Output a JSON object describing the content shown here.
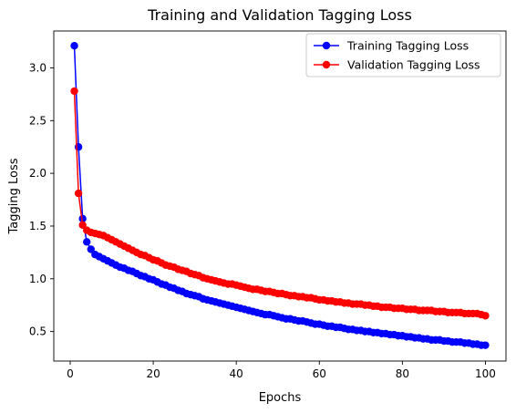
{
  "chart_data": {
    "type": "line",
    "title": "Training and Validation Tagging Loss",
    "xlabel": "Epochs",
    "ylabel": "Tagging Loss",
    "xlim": [
      -3.95,
      104.95
    ],
    "ylim": [
      0.22,
      3.35
    ],
    "xticks": [
      0,
      20,
      40,
      60,
      80,
      100
    ],
    "yticks": [
      0.5,
      1.0,
      1.5,
      2.0,
      2.5,
      3.0
    ],
    "ytick_labels": [
      "0.5",
      "1.0",
      "1.5",
      "2.0",
      "2.5",
      "3.0"
    ],
    "grid": false,
    "legend_position": "upper right",
    "x": [
      1,
      2,
      3,
      4,
      5,
      6,
      7,
      8,
      9,
      10,
      11,
      12,
      13,
      14,
      15,
      16,
      17,
      18,
      19,
      20,
      21,
      22,
      23,
      24,
      25,
      26,
      27,
      28,
      29,
      30,
      31,
      32,
      33,
      34,
      35,
      36,
      37,
      38,
      39,
      40,
      41,
      42,
      43,
      44,
      45,
      46,
      47,
      48,
      49,
      50,
      51,
      52,
      53,
      54,
      55,
      56,
      57,
      58,
      59,
      60,
      61,
      62,
      63,
      64,
      65,
      66,
      67,
      68,
      69,
      70,
      71,
      72,
      73,
      74,
      75,
      76,
      77,
      78,
      79,
      80,
      81,
      82,
      83,
      84,
      85,
      86,
      87,
      88,
      89,
      90,
      91,
      92,
      93,
      94,
      95,
      96,
      97,
      98,
      99,
      100
    ],
    "series": [
      {
        "name": "Training Tagging Loss",
        "color": "#0000ff",
        "values": [
          3.21,
          2.25,
          1.57,
          1.35,
          1.28,
          1.23,
          1.21,
          1.19,
          1.17,
          1.15,
          1.13,
          1.11,
          1.1,
          1.08,
          1.07,
          1.05,
          1.03,
          1.02,
          1.0,
          0.99,
          0.97,
          0.95,
          0.94,
          0.92,
          0.91,
          0.89,
          0.88,
          0.86,
          0.85,
          0.84,
          0.83,
          0.81,
          0.8,
          0.79,
          0.78,
          0.77,
          0.76,
          0.75,
          0.74,
          0.73,
          0.72,
          0.71,
          0.7,
          0.69,
          0.68,
          0.67,
          0.66,
          0.66,
          0.65,
          0.64,
          0.63,
          0.62,
          0.62,
          0.61,
          0.6,
          0.6,
          0.59,
          0.58,
          0.57,
          0.57,
          0.56,
          0.55,
          0.55,
          0.54,
          0.54,
          0.53,
          0.52,
          0.52,
          0.51,
          0.51,
          0.5,
          0.5,
          0.49,
          0.49,
          0.48,
          0.48,
          0.47,
          0.47,
          0.46,
          0.46,
          0.45,
          0.45,
          0.44,
          0.44,
          0.43,
          0.43,
          0.42,
          0.42,
          0.42,
          0.41,
          0.41,
          0.4,
          0.4,
          0.4,
          0.39,
          0.39,
          0.38,
          0.38,
          0.37,
          0.37
        ]
      },
      {
        "name": "Validation Tagging Loss",
        "color": "#ff0000",
        "values": [
          2.78,
          1.81,
          1.51,
          1.46,
          1.44,
          1.43,
          1.42,
          1.41,
          1.39,
          1.37,
          1.35,
          1.33,
          1.31,
          1.29,
          1.27,
          1.25,
          1.23,
          1.22,
          1.2,
          1.18,
          1.17,
          1.15,
          1.13,
          1.12,
          1.11,
          1.09,
          1.08,
          1.07,
          1.05,
          1.04,
          1.03,
          1.01,
          1.0,
          0.99,
          0.98,
          0.97,
          0.96,
          0.95,
          0.95,
          0.94,
          0.93,
          0.92,
          0.91,
          0.9,
          0.9,
          0.89,
          0.88,
          0.88,
          0.87,
          0.86,
          0.86,
          0.85,
          0.84,
          0.84,
          0.83,
          0.83,
          0.82,
          0.82,
          0.81,
          0.8,
          0.8,
          0.79,
          0.79,
          0.78,
          0.78,
          0.77,
          0.77,
          0.76,
          0.76,
          0.76,
          0.75,
          0.75,
          0.74,
          0.74,
          0.73,
          0.73,
          0.73,
          0.72,
          0.72,
          0.72,
          0.71,
          0.71,
          0.71,
          0.7,
          0.7,
          0.7,
          0.7,
          0.69,
          0.69,
          0.69,
          0.68,
          0.68,
          0.68,
          0.68,
          0.67,
          0.67,
          0.67,
          0.67,
          0.66,
          0.65
        ]
      }
    ]
  }
}
